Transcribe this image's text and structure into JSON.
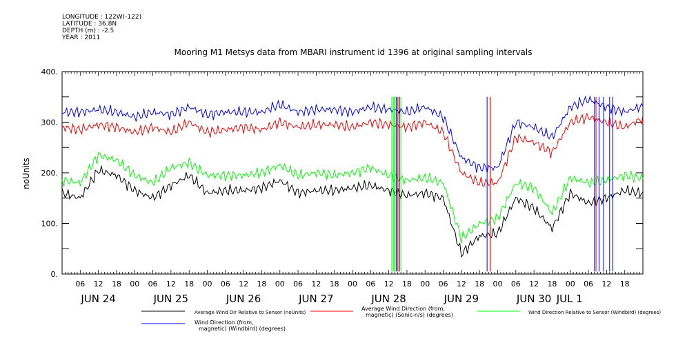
{
  "header": {
    "longitude": "LONGITUDE : 122W(-122)",
    "latitude": "LATITUDE : 36.8N",
    "depth": "DEPTH (m) : -2.5",
    "year": "YEAR : 2011"
  },
  "chart_data": {
    "type": "line",
    "title": "Mooring M1 Metsys data from MBARI instrument id 1396 at original sampling intervals",
    "ylabel": "noUnits",
    "xlabel": "",
    "ylim": [
      0,
      400
    ],
    "yticks": [
      0,
      100,
      200,
      300,
      400
    ],
    "xrange_hours": [
      0,
      192
    ],
    "hour_ticks": [
      "06",
      "12",
      "18",
      "00"
    ],
    "day_labels": [
      "JUN 24",
      "JUN 25",
      "JUN 26",
      "JUN 27",
      "JUN 28",
      "JUN 29",
      "JUN 30",
      "JUL 1"
    ],
    "grid": false,
    "legend_position": "bottom",
    "x": [
      0,
      6,
      12,
      18,
      24,
      30,
      36,
      42,
      48,
      54,
      60,
      66,
      72,
      78,
      84,
      90,
      96,
      102,
      108,
      114,
      120,
      126,
      132,
      138,
      144,
      150,
      156,
      162,
      168,
      174,
      180,
      186,
      191
    ],
    "series": [
      {
        "name": "Average Wind Dir Relative to Sensor (noUnits)",
        "color": "#000000",
        "values": [
          160,
          150,
          205,
          195,
          165,
          150,
          175,
          195,
          160,
          165,
          165,
          170,
          185,
          160,
          165,
          165,
          170,
          175,
          165,
          155,
          160,
          150,
          40,
          75,
          80,
          150,
          130,
          90,
          160,
          140,
          150,
          165,
          160
        ]
      },
      {
        "name": "Average Wind Direction (from, magnetic) (Sonic-n/s) (degrees)",
        "color": "#ff0000",
        "values": [
          290,
          285,
          295,
          290,
          280,
          290,
          280,
          300,
          280,
          285,
          290,
          285,
          300,
          290,
          295,
          295,
          290,
          300,
          295,
          290,
          300,
          280,
          200,
          180,
          180,
          270,
          260,
          240,
          300,
          310,
          300,
          290,
          305
        ]
      },
      {
        "name": "Wind Direction Relative to Sensor (Windbird) (degrees)",
        "color": "#00ff00",
        "values": [
          185,
          180,
          235,
          225,
          195,
          180,
          210,
          220,
          195,
          195,
          195,
          200,
          215,
          195,
          200,
          195,
          200,
          210,
          195,
          185,
          190,
          180,
          70,
          100,
          110,
          180,
          170,
          120,
          190,
          180,
          185,
          195,
          190
        ]
      },
      {
        "name": "Wind Direction (from, magnetic) (Windbird) (degrees)",
        "color": "#0000ff",
        "values": [
          320,
          320,
          325,
          320,
          310,
          320,
          315,
          330,
          315,
          320,
          320,
          320,
          335,
          320,
          325,
          325,
          320,
          330,
          325,
          320,
          330,
          310,
          230,
          210,
          210,
          300,
          290,
          270,
          330,
          345,
          330,
          320,
          330
        ]
      }
    ]
  },
  "legend": [
    {
      "label": "Average Wind Dir Relative to Sensor (noUnits)",
      "color": "#000000"
    },
    {
      "label": "Average Wind Direction (from,\nmagnetic) (Sonic-n/s) (degrees)",
      "color": "#ff0000"
    },
    {
      "label": "Wind Direction Relative to Sensor (Windbird) (degrees)",
      "color": "#00ff00"
    },
    {
      "label": "Wind Direction (from,\nmagnetic) (Windbird) (degrees)",
      "color": "#0000ff"
    }
  ]
}
